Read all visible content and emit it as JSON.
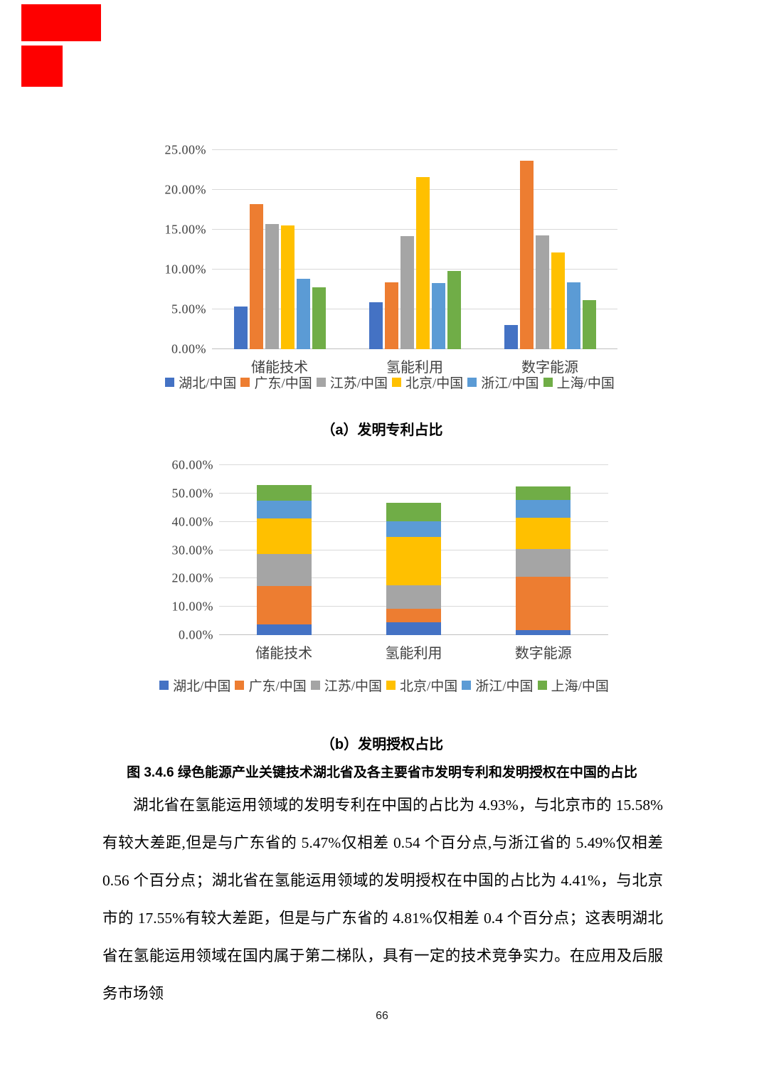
{
  "page": {
    "number": "66"
  },
  "annotation": {
    "color": "#fe0000"
  },
  "figure": {
    "caption_a": "（a）发明专利占比",
    "caption_b": "（b）发明授权占比",
    "figure_caption": "图 3.4.6 绿色能源产业关键技术湖北省及各主要省市发明专利和发明授权在中国的占比"
  },
  "paragraph": "湖北省在氢能运用领域的发明专利在中国的占比为 4.93%，与北京市的 15.58%有较大差距,但是与广东省的 5.47%仅相差 0.54 个百分点,与浙江省的 5.49%仅相差 0.56 个百分点；湖北省在氢能运用领域的发明授权在中国的占比为 4.41%，与北京市的 17.55%有较大差距，但是与广东省的 4.81%仅相差 0.4 个百分点；这表明湖北省在氢能运用领域在国内属于第二梯队，具有一定的技术竞争实力。在应用及后服务市场领",
  "chart_data": [
    {
      "type": "bar",
      "title": "（a）发明专利占比",
      "categories": [
        "储能技术",
        "氢能利用",
        "数字能源"
      ],
      "series": [
        {
          "name": "湖北/中国",
          "color": "#4472C4",
          "values": [
            5.4,
            5.9,
            3.0
          ]
        },
        {
          "name": "广东/中国",
          "color": "#ED7D31",
          "values": [
            18.2,
            8.4,
            23.7
          ]
        },
        {
          "name": "江苏/中国",
          "color": "#A5A5A5",
          "values": [
            15.7,
            14.2,
            14.3
          ]
        },
        {
          "name": "北京/中国",
          "color": "#FFC000",
          "values": [
            15.5,
            21.6,
            12.1
          ]
        },
        {
          "name": "浙江/中国",
          "color": "#5B9BD5",
          "values": [
            8.8,
            8.3,
            8.4
          ]
        },
        {
          "name": "上海/中国",
          "color": "#70AD47",
          "values": [
            7.8,
            9.8,
            6.2
          ]
        }
      ],
      "ylim": [
        0,
        25
      ],
      "yticks": [
        "25.00%",
        "20.00%",
        "15.00%",
        "10.00%",
        "5.00%",
        "0.00%"
      ],
      "grid": true,
      "legend_position": "bottom"
    },
    {
      "type": "bar-stacked",
      "title": "（b）发明授权占比",
      "categories": [
        "储能技术",
        "氢能利用",
        "数字能源"
      ],
      "series": [
        {
          "name": "湖北/中国",
          "color": "#4472C4",
          "values": [
            3.8,
            4.4,
            1.8
          ]
        },
        {
          "name": "广东/中国",
          "color": "#ED7D31",
          "values": [
            13.6,
            4.8,
            18.9
          ]
        },
        {
          "name": "江苏/中国",
          "color": "#A5A5A5",
          "values": [
            11.2,
            8.4,
            9.8
          ]
        },
        {
          "name": "北京/中国",
          "color": "#FFC000",
          "values": [
            12.5,
            17.0,
            10.9
          ]
        },
        {
          "name": "浙江/中国",
          "color": "#5B9BD5",
          "values": [
            6.4,
            5.6,
            6.3
          ]
        },
        {
          "name": "上海/中国",
          "color": "#70AD47",
          "values": [
            5.4,
            6.4,
            4.7
          ]
        }
      ],
      "ylim": [
        0,
        60
      ],
      "yticks": [
        "60.00%",
        "50.00%",
        "40.00%",
        "30.00%",
        "20.00%",
        "10.00%",
        "0.00%"
      ],
      "grid": true,
      "legend_position": "bottom"
    }
  ]
}
